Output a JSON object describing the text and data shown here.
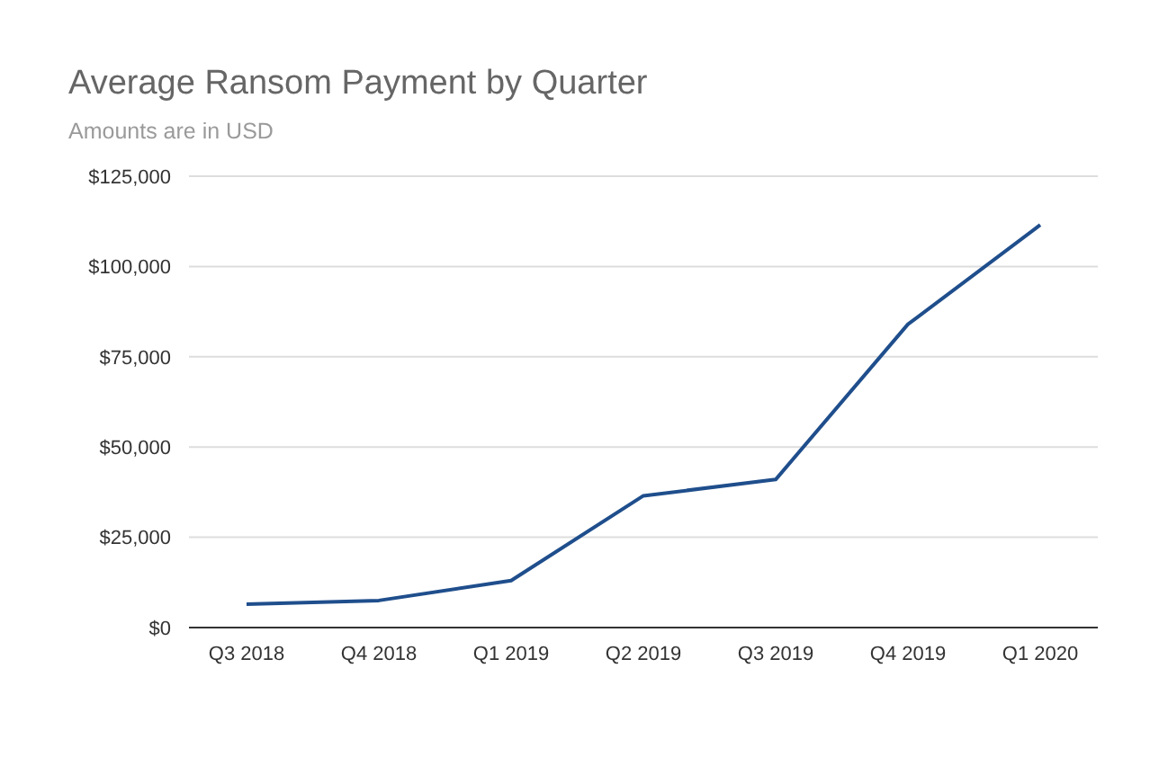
{
  "chart_data": {
    "type": "line",
    "title": "Average Ransom Payment by Quarter",
    "subtitle": "Amounts are in USD",
    "categories": [
      "Q3 2018",
      "Q4 2018",
      "Q1 2019",
      "Q2 2019",
      "Q3 2019",
      "Q4 2019",
      "Q1 2020"
    ],
    "series": [
      {
        "color": "#1f4e8c",
        "values": [
          6500,
          7500,
          13000,
          36500,
          41000,
          84000,
          111500
        ]
      }
    ],
    "ylim": [
      0,
      125000
    ],
    "yticks": [
      {
        "value": 0,
        "label": "$0"
      },
      {
        "value": 25000,
        "label": "$25,000"
      },
      {
        "value": 50000,
        "label": "$50,000"
      },
      {
        "value": 75000,
        "label": "$75,000"
      },
      {
        "value": 100000,
        "label": "$100,000"
      },
      {
        "value": 125000,
        "label": "$125,000"
      }
    ],
    "grid": "y",
    "marker": "none",
    "line_style": "solid"
  }
}
